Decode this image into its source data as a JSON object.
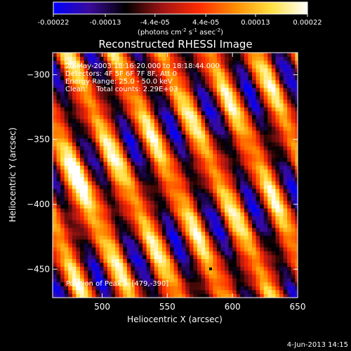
{
  "colorbar": {
    "tick_labels": [
      "-0.00022",
      "-0.00013",
      "-4.4e-05",
      "4.4e-05",
      "0.00013",
      "0.00022"
    ],
    "tick_values": [
      -0.00022,
      -0.00013,
      -4.4e-05,
      4.4e-05,
      0.00013,
      0.00022
    ],
    "range": [
      -0.00022,
      0.00022
    ],
    "units_main": "(photons cm",
    "units_exp1": "-2",
    "units_mid": " s",
    "units_exp2": "-1",
    "units_mid2": " asec",
    "units_exp3": "-2",
    "units_close": ")",
    "colormap": [
      "#0000ff",
      "#3a0a9a",
      "#000000",
      "#a01414",
      "#ff2a00",
      "#ff8c00",
      "#ffe040",
      "#ffffff"
    ]
  },
  "chart_data": {
    "type": "heatmap",
    "title": "Reconstructed RHESSI Image",
    "xlabel": "Heliocentric X (arcsec)",
    "ylabel": "Heliocentric Y (arcsec)",
    "xlim": [
      462,
      650
    ],
    "ylim": [
      -472,
      -283
    ],
    "x_ticks": [
      500,
      550,
      600,
      650
    ],
    "y_ticks": [
      -300,
      -350,
      -400,
      -450
    ],
    "value_range": [
      -0.00022,
      0.00022
    ],
    "annotations": {
      "line1": "20-May-2003 18:16:20.000 to 18:18:44.000",
      "line2": "Detectors: 4F 5F 6F 7F 8F, Att 0",
      "line3": "Energy Range: 25.0 - 50.0 keV",
      "line4": "Clean     Total counts: 2.29E+03",
      "peak": "Position of Peak = [479,-390]"
    },
    "peak_position": [
      479,
      -390
    ]
  },
  "footer": {
    "timestamp": "4-Jun-2013 14:15"
  }
}
